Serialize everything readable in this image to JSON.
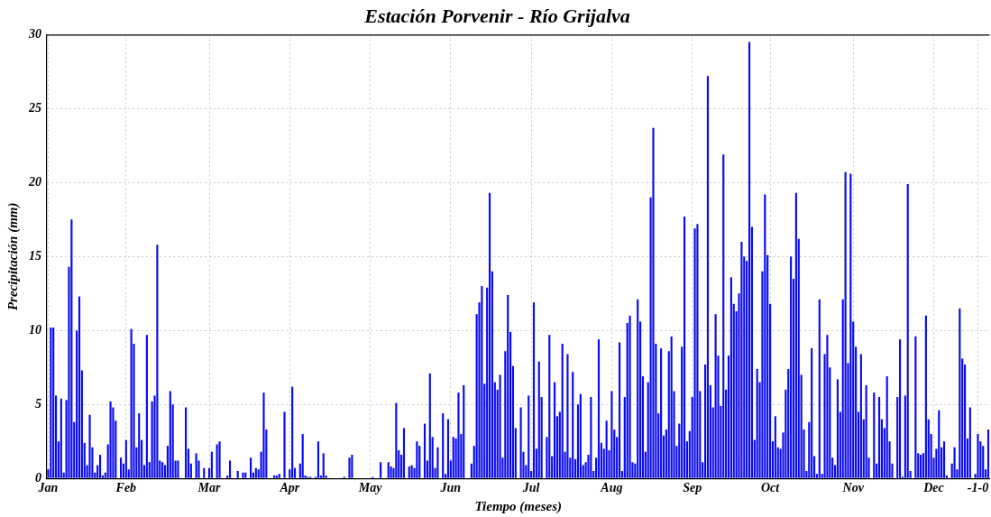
{
  "chart_data": {
    "type": "bar",
    "title": "Estación Porvenir - Río Grijalva",
    "xlabel": "Tiempo (meses)",
    "ylabel": "Precipitación (mm)",
    "color": "#0a0af0",
    "categories": [
      "Jan",
      null,
      null,
      null,
      null,
      null,
      null,
      null,
      null,
      null,
      null,
      null,
      null,
      null,
      null,
      null,
      null,
      null,
      null,
      null,
      null,
      null,
      null,
      null,
      null,
      null,
      null,
      null,
      null,
      null,
      "Feb",
      null,
      null,
      null,
      null,
      null,
      null,
      null,
      null,
      null,
      null,
      null,
      null,
      null,
      null,
      null,
      null,
      null,
      null,
      null,
      null,
      null,
      null,
      null,
      null,
      null,
      null,
      null,
      null,
      null,
      null,
      null,
      "Mar",
      null,
      null,
      null,
      null,
      null,
      null,
      null,
      null,
      null,
      null,
      null,
      null,
      null,
      null,
      null,
      null,
      null,
      null,
      null,
      null,
      null,
      null,
      null,
      null,
      null,
      null,
      null,
      null,
      null,
      null,
      "Apr",
      null,
      null,
      null,
      null,
      null,
      null,
      null,
      null,
      null,
      null,
      null,
      null,
      null,
      null,
      null,
      null,
      null,
      null,
      null,
      null,
      null,
      null,
      null,
      null,
      null,
      null,
      null,
      null,
      null,
      null,
      "May",
      null,
      null,
      null,
      null,
      null,
      null,
      null,
      null,
      null,
      null,
      null,
      null,
      null,
      null,
      null,
      null,
      null,
      null,
      null,
      null,
      null,
      null,
      null,
      null,
      null,
      null,
      null,
      null,
      null,
      null,
      "Jun",
      null,
      null,
      null,
      null,
      null,
      null,
      null,
      null,
      null,
      null,
      null,
      null,
      null,
      null,
      null,
      null,
      null,
      null,
      null,
      null,
      null,
      null,
      null,
      null,
      null,
      null,
      null,
      null,
      null,
      null,
      "Jul",
      null,
      null,
      null,
      null,
      null,
      null,
      null,
      null,
      null,
      null,
      null,
      null,
      null,
      null,
      null,
      null,
      null,
      null,
      null,
      null,
      null,
      null,
      null,
      null,
      null,
      null,
      null,
      null,
      null,
      null,
      "Aug",
      null,
      null,
      null,
      null,
      null,
      null,
      null,
      null,
      null,
      null,
      null,
      null,
      null,
      null,
      null,
      null,
      null,
      null,
      null,
      null,
      null,
      null,
      null,
      null,
      null,
      null,
      null,
      null,
      null,
      null,
      "Sep",
      null,
      null,
      null,
      null,
      null,
      null,
      null,
      null,
      null,
      null,
      null,
      null,
      null,
      null,
      null,
      null,
      null,
      null,
      null,
      null,
      null,
      null,
      null,
      null,
      null,
      null,
      null,
      null,
      null,
      "Oct",
      null,
      null,
      null,
      null,
      null,
      null,
      null,
      null,
      null,
      null,
      null,
      null,
      null,
      null,
      null,
      null,
      null,
      null,
      null,
      null,
      null,
      null,
      null,
      null,
      null,
      null,
      null,
      null,
      null,
      null,
      null,
      "Nov",
      null,
      null,
      null,
      null,
      null,
      null,
      null,
      null,
      null,
      null,
      null,
      null,
      null,
      null,
      null,
      null,
      null,
      null,
      null,
      null,
      null,
      null,
      null,
      null,
      null,
      null,
      null,
      null,
      null,
      null,
      "Dec",
      null,
      null,
      null,
      null,
      null,
      null,
      null,
      null,
      null,
      null,
      null,
      null,
      null,
      null,
      null,
      null,
      "-1-0",
      null,
      null,
      null,
      null
    ],
    "values": [
      0.6,
      10.2,
      10.2,
      5.6,
      2.5,
      5.4,
      0.4,
      5.3,
      14.3,
      17.5,
      3.8,
      10.0,
      12.3,
      7.3,
      2.4,
      0.9,
      4.3,
      2.1,
      0.4,
      0.9,
      1.6,
      0.2,
      0.4,
      2.3,
      5.2,
      4.8,
      3.9,
      0,
      1.4,
      1.0,
      2.6,
      0.6,
      10.1,
      9.1,
      2.1,
      4.4,
      2.6,
      0.9,
      9.7,
      1.1,
      5.2,
      5.6,
      15.8,
      1.2,
      1.1,
      0.9,
      2.2,
      5.9,
      5.0,
      1.2,
      1.2,
      0,
      0,
      4.8,
      2.0,
      1.0,
      0,
      1.7,
      1.2,
      0,
      0.7,
      0,
      0.7,
      1.8,
      0,
      2.3,
      2.5,
      0,
      0,
      0.2,
      1.2,
      0,
      0,
      0.5,
      0,
      0.4,
      0.4,
      0,
      1.4,
      0.4,
      0.7,
      0.6,
      1.8,
      5.8,
      3.3,
      0,
      0,
      0.2,
      0.2,
      0.3,
      0,
      4.5,
      0,
      0.6,
      6.2,
      0.7,
      0,
      1.0,
      3.0,
      0.2,
      0.1,
      0.1,
      0,
      0.1,
      2.5,
      0.2,
      1.7,
      0.2,
      0,
      0,
      0,
      0,
      0,
      0,
      0.1,
      0,
      1.4,
      1.6,
      0,
      0,
      0,
      0,
      0,
      0,
      0,
      0.1,
      0,
      0,
      1.1,
      0,
      0,
      1.1,
      0.8,
      0.7,
      5.1,
      1.9,
      1.6,
      3.4,
      0,
      0.8,
      0.9,
      0.7,
      2.5,
      2.2,
      0,
      3.7,
      1.2,
      7.1,
      2.8,
      0.7,
      2.1,
      0,
      4.4,
      0.3,
      4.0,
      1.2,
      2.8,
      2.7,
      5.8,
      3.0,
      6.3,
      0,
      0,
      1.0,
      2.2,
      11.1,
      11.9,
      13.0,
      6.4,
      12.9,
      19.3,
      14.0,
      6.5,
      6.0,
      7.0,
      1.4,
      8.6,
      12.4,
      9.9,
      7.6,
      3.4,
      0,
      4.8,
      1.8,
      0.9,
      5.6,
      0.5,
      11.9,
      2.0,
      7.9,
      5.5,
      0,
      2.8,
      9.7,
      1.5,
      6.5,
      4.2,
      4.5,
      9.1,
      1.8,
      8.4,
      1.4,
      7.2,
      1.3,
      5.0,
      5.7,
      0.9,
      1.1,
      1.6,
      5.5,
      0.5,
      1.4,
      9.4,
      2.4,
      2.0,
      3.9,
      1.9,
      5.9,
      3.3,
      2.8,
      9.2,
      0.5,
      5.5,
      10.5,
      11.0,
      1.1,
      1.0,
      12.1,
      10.6,
      6.9,
      1.8,
      6.5,
      19.0,
      23.7,
      9.1,
      4.4,
      8.8,
      2.9,
      3.3,
      8.6,
      9.6,
      5.9,
      2.2,
      3.7,
      8.9,
      17.7,
      2.5,
      3.2,
      5.5,
      16.9,
      17.2,
      5.9,
      1.1,
      7.7,
      27.2,
      6.3,
      4.8,
      11.1,
      8.3,
      4.9,
      21.9,
      6.0,
      8.3,
      13.6,
      11.8,
      11.3,
      12.5,
      16.0,
      15.0,
      14.7,
      29.5,
      17.0,
      2.6,
      7.4,
      6.5,
      14.0,
      19.2,
      15.1,
      11.8,
      2.5,
      4.2,
      2.1,
      2.0,
      3.1,
      6.0,
      7.4,
      15.0,
      13.5,
      19.3,
      16.2,
      7.0,
      3.3,
      0.5,
      3.8,
      8.8,
      1.5,
      0.3,
      12.1,
      0.3,
      8.4,
      9.7,
      7.5,
      1.4,
      0.9,
      6.7,
      4.5,
      12.1,
      20.7,
      7.8,
      20.6,
      10.6,
      8.9,
      4.5,
      8.4,
      4.0,
      6.3,
      1.4,
      0,
      5.8,
      1.0,
      5.5,
      4.0,
      3.4,
      6.9,
      2.5,
      1.0,
      0,
      5.5,
      9.4,
      0.1,
      5.6,
      19.9,
      0.5,
      0,
      9.6,
      1.7,
      1.6,
      1.7,
      11.0,
      4.0,
      3.0,
      1.4,
      2.0,
      4.6,
      2.1,
      2.5,
      0.2,
      0,
      1.0,
      2.1,
      0.6,
      11.5,
      8.1,
      7.7,
      2.7,
      4.8,
      0,
      0.3,
      3.0,
      2.5,
      2.2,
      0.6,
      3.3
    ],
    "ylim": [
      0,
      30
    ],
    "yticks": [
      0,
      5,
      10,
      15,
      20,
      25,
      30
    ],
    "grid": true,
    "legend": false
  }
}
